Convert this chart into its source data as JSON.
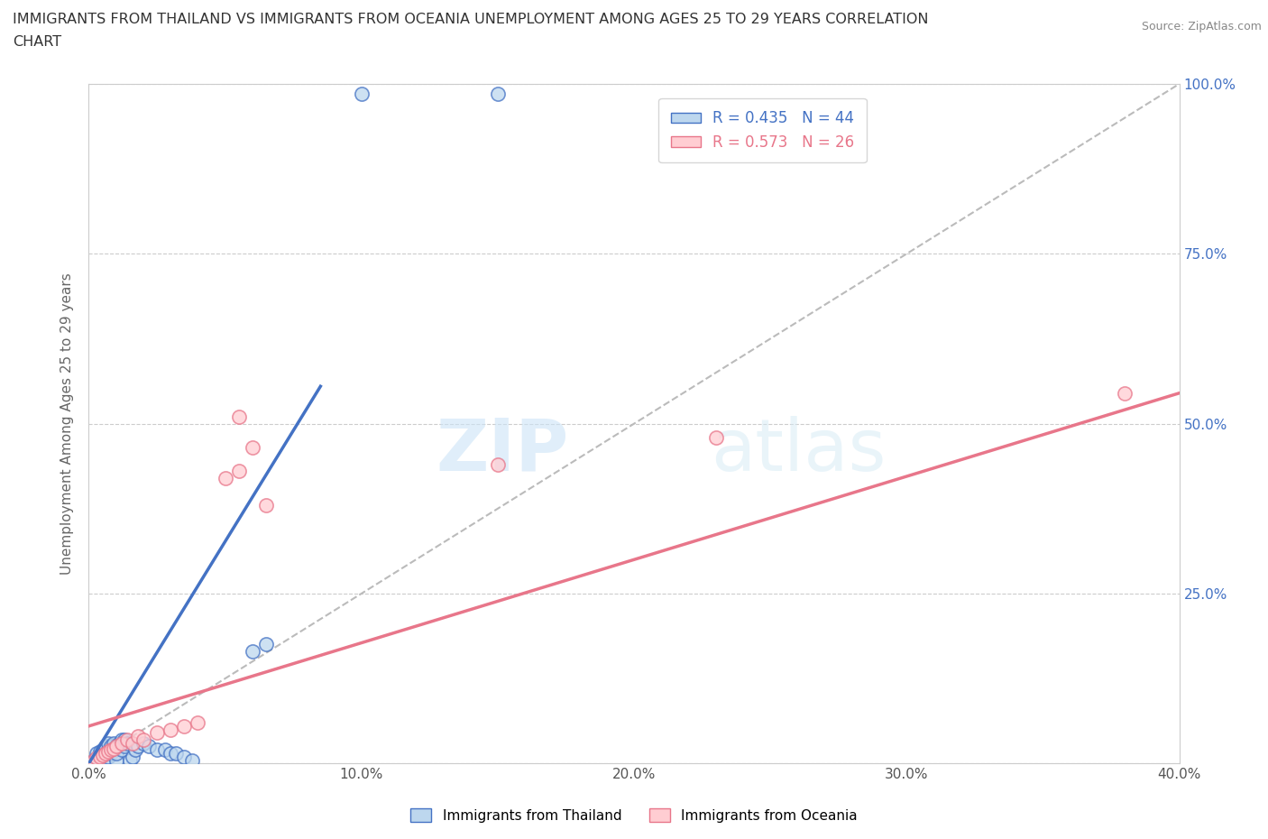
{
  "title_line1": "IMMIGRANTS FROM THAILAND VS IMMIGRANTS FROM OCEANIA UNEMPLOYMENT AMONG AGES 25 TO 29 YEARS CORRELATION",
  "title_line2": "CHART",
  "source_text": "Source: ZipAtlas.com",
  "ylabel": "Unemployment Among Ages 25 to 29 years",
  "xlim": [
    0.0,
    0.4
  ],
  "ylim": [
    0.0,
    1.0
  ],
  "xticks": [
    0.0,
    0.1,
    0.2,
    0.3,
    0.4
  ],
  "yticks": [
    0.0,
    0.25,
    0.5,
    0.75,
    1.0
  ],
  "xticklabels": [
    "0.0%",
    "10.0%",
    "20.0%",
    "30.0%",
    "40.0%"
  ],
  "yticklabels": [
    "",
    "25.0%",
    "50.0%",
    "75.0%",
    "100.0%"
  ],
  "watermark_zip": "ZIP",
  "watermark_atlas": "atlas",
  "legend_r1": "R = 0.435",
  "legend_n1": "N = 44",
  "legend_r2": "R = 0.573",
  "legend_n2": "N = 26",
  "blue_color": "#4472C4",
  "pink_color": "#E8768A",
  "blue_fill": "#BDD7EE",
  "pink_fill": "#FFCDD2",
  "thailand_scatter": [
    [
      0.002,
      0.005
    ],
    [
      0.003,
      0.008
    ],
    [
      0.003,
      0.015
    ],
    [
      0.004,
      0.005
    ],
    [
      0.004,
      0.01
    ],
    [
      0.004,
      0.018
    ],
    [
      0.005,
      0.005
    ],
    [
      0.005,
      0.012
    ],
    [
      0.005,
      0.02
    ],
    [
      0.006,
      0.008
    ],
    [
      0.006,
      0.015
    ],
    [
      0.006,
      0.025
    ],
    [
      0.007,
      0.01
    ],
    [
      0.007,
      0.02
    ],
    [
      0.007,
      0.03
    ],
    [
      0.008,
      0.015
    ],
    [
      0.008,
      0.025
    ],
    [
      0.009,
      0.02
    ],
    [
      0.009,
      0.03
    ],
    [
      0.01,
      0.005
    ],
    [
      0.01,
      0.015
    ],
    [
      0.01,
      0.025
    ],
    [
      0.011,
      0.03
    ],
    [
      0.012,
      0.02
    ],
    [
      0.012,
      0.035
    ],
    [
      0.013,
      0.025
    ],
    [
      0.013,
      0.035
    ],
    [
      0.014,
      0.03
    ],
    [
      0.015,
      0.005
    ],
    [
      0.016,
      0.01
    ],
    [
      0.017,
      0.02
    ],
    [
      0.018,
      0.025
    ],
    [
      0.02,
      0.03
    ],
    [
      0.022,
      0.025
    ],
    [
      0.025,
      0.02
    ],
    [
      0.028,
      0.02
    ],
    [
      0.03,
      0.015
    ],
    [
      0.032,
      0.015
    ],
    [
      0.035,
      0.01
    ],
    [
      0.038,
      0.005
    ],
    [
      0.06,
      0.165
    ],
    [
      0.065,
      0.175
    ],
    [
      0.1,
      0.985
    ],
    [
      0.15,
      0.985
    ]
  ],
  "oceania_scatter": [
    [
      0.002,
      0.005
    ],
    [
      0.003,
      0.008
    ],
    [
      0.004,
      0.01
    ],
    [
      0.005,
      0.012
    ],
    [
      0.006,
      0.015
    ],
    [
      0.007,
      0.018
    ],
    [
      0.008,
      0.02
    ],
    [
      0.009,
      0.022
    ],
    [
      0.01,
      0.025
    ],
    [
      0.012,
      0.03
    ],
    [
      0.014,
      0.035
    ],
    [
      0.016,
      0.03
    ],
    [
      0.018,
      0.04
    ],
    [
      0.02,
      0.035
    ],
    [
      0.025,
      0.045
    ],
    [
      0.03,
      0.05
    ],
    [
      0.035,
      0.055
    ],
    [
      0.04,
      0.06
    ],
    [
      0.05,
      0.42
    ],
    [
      0.055,
      0.43
    ],
    [
      0.055,
      0.51
    ],
    [
      0.06,
      0.465
    ],
    [
      0.065,
      0.38
    ],
    [
      0.15,
      0.44
    ],
    [
      0.23,
      0.48
    ],
    [
      0.38,
      0.545
    ]
  ],
  "thailand_line_x": [
    0.0,
    0.085
  ],
  "thailand_line_y": [
    0.0,
    0.555
  ],
  "oceania_line_x": [
    0.0,
    0.4
  ],
  "oceania_line_y": [
    0.055,
    0.545
  ],
  "ref_line_x": [
    0.0,
    0.4
  ],
  "ref_line_y": [
    0.0,
    1.0
  ],
  "background_color": "#ffffff",
  "grid_color": "#cccccc"
}
